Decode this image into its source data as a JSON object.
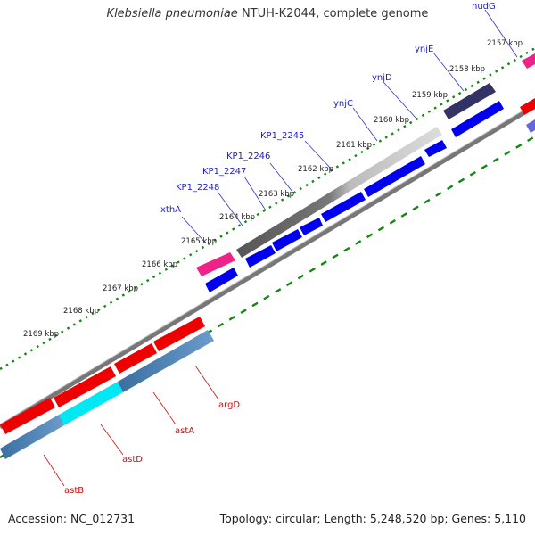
{
  "title": {
    "species": "Klebsiella pneumoniae",
    "rest": " NTUH-K2044, complete genome"
  },
  "footer": {
    "accession": "Accession: NC_012731",
    "topology": "Topology: circular; Length: 5,248,520 bp; Genes: 5,110"
  },
  "colors": {
    "forward_cds": "#0000ee",
    "reverse_cds": "#ee0000",
    "rna_pink": "#ee2288",
    "highlight_cyan": "#00e0f0",
    "steel": "#4682b4",
    "gray_track": "#888888",
    "tick_green": "#118811"
  },
  "scale_ticks": [
    "2157 kbp",
    "2158 kbp",
    "2159 kbp",
    "2160 kbp",
    "2161 kbp",
    "2162 kbp",
    "2163 kbp",
    "2164 kbp",
    "2165 kbp",
    "2166 kbp",
    "2167 kbp",
    "2168 kbp",
    "2169 kbp"
  ],
  "forward_genes": [
    "nudG",
    "ynjE",
    "ynjD",
    "ynjC",
    "KP1_2245",
    "KP1_2246",
    "KP1_2247",
    "KP1_2248",
    "xthA"
  ],
  "reverse_genes": [
    "argD",
    "astA",
    "astD",
    "astB"
  ]
}
